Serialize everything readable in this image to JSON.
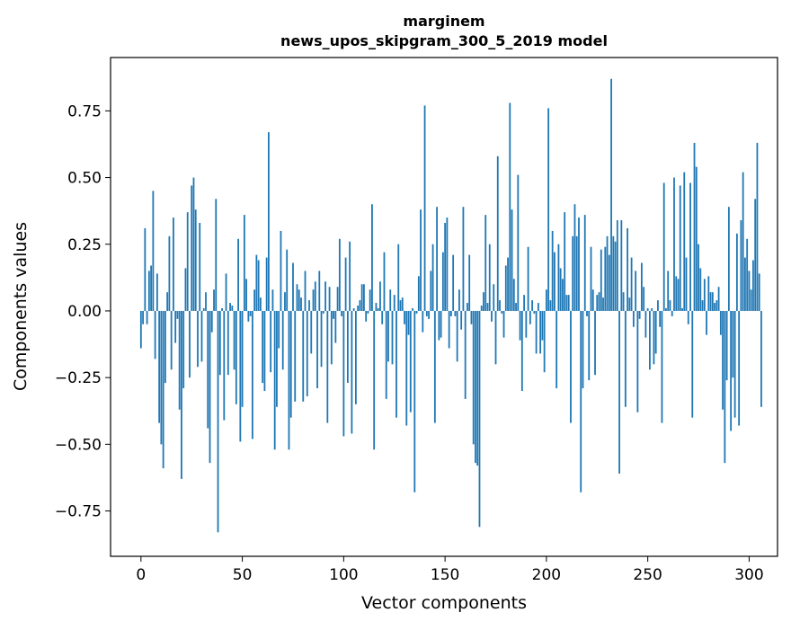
{
  "chart_data": {
    "type": "bar",
    "title": "marginem",
    "subtitle": "news_upos_skipgram_300_5_2019 model",
    "xlabel": "Vector components",
    "ylabel": "Components values",
    "xlim": [
      -15,
      314
    ],
    "ylim": [
      -0.92,
      0.95
    ],
    "xticks": [
      0,
      50,
      100,
      150,
      200,
      250,
      300
    ],
    "xtick_labels": [
      "0",
      "50",
      "100",
      "150",
      "200",
      "250",
      "300"
    ],
    "yticks": [
      -0.75,
      -0.5,
      -0.25,
      0.0,
      0.25,
      0.5,
      0.75
    ],
    "ytick_labels": [
      "−0.75",
      "−0.50",
      "−0.25",
      "0.00",
      "0.25",
      "0.50",
      "0.75"
    ],
    "grid": false,
    "bar_color": "#1f77b4",
    "values": [
      -0.14,
      -0.05,
      0.31,
      -0.05,
      0.15,
      0.17,
      0.45,
      -0.18,
      0.14,
      -0.42,
      -0.5,
      -0.59,
      -0.27,
      0.07,
      0.28,
      -0.22,
      0.35,
      -0.12,
      -0.03,
      -0.37,
      -0.63,
      -0.29,
      0.16,
      0.37,
      -0.25,
      0.47,
      0.5,
      0.38,
      -0.21,
      0.33,
      -0.19,
      0.01,
      0.07,
      -0.44,
      -0.57,
      -0.08,
      0.08,
      0.42,
      -0.83,
      -0.24,
      0.01,
      -0.41,
      0.14,
      -0.24,
      0.03,
      0.02,
      -0.22,
      -0.35,
      0.27,
      -0.49,
      -0.36,
      0.36,
      0.12,
      -0.04,
      -0.02,
      -0.48,
      0.08,
      0.21,
      0.19,
      0.05,
      -0.27,
      -0.3,
      0.2,
      0.67,
      -0.23,
      0.08,
      -0.52,
      -0.36,
      -0.14,
      0.3,
      -0.22,
      0.07,
      0.23,
      -0.52,
      -0.4,
      0.18,
      -0.34,
      0.1,
      0.08,
      0.05,
      -0.34,
      0.15,
      -0.32,
      0.04,
      -0.16,
      0.08,
      0.11,
      -0.29,
      0.15,
      -0.21,
      -0.01,
      0.11,
      -0.42,
      0.09,
      -0.2,
      -0.03,
      -0.12,
      0.09,
      0.27,
      -0.02,
      -0.47,
      0.2,
      -0.27,
      0.26,
      -0.46,
      0.01,
      -0.35,
      0.02,
      0.04,
      0.1,
      0.1,
      -0.04,
      -0.01,
      0.08,
      0.4,
      -0.52,
      0.03,
      0.01,
      0.11,
      -0.05,
      0.22,
      -0.33,
      -0.19,
      0.08,
      -0.2,
      0.06,
      -0.4,
      0.25,
      0.04,
      0.05,
      -0.05,
      -0.43,
      -0.09,
      -0.38,
      0.01,
      -0.68,
      -0.01,
      0.13,
      0.38,
      -0.08,
      0.77,
      -0.02,
      -0.03,
      0.15,
      0.25,
      -0.42,
      0.39,
      -0.11,
      -0.1,
      0.22,
      0.33,
      0.35,
      -0.14,
      -0.02,
      0.21,
      -0.02,
      -0.19,
      0.08,
      -0.07,
      0.39,
      -0.33,
      0.03,
      0.21,
      -0.05,
      -0.5,
      -0.57,
      -0.58,
      -0.81,
      0.02,
      0.07,
      0.36,
      0.03,
      0.25,
      -0.04,
      0.1,
      -0.2,
      0.58,
      0.04,
      -0.01,
      -0.1,
      0.17,
      0.2,
      0.78,
      0.38,
      0.12,
      0.03,
      0.51,
      -0.11,
      -0.3,
      0.06,
      -0.1,
      0.24,
      -0.05,
      0.04,
      -0.01,
      -0.16,
      0.03,
      -0.16,
      -0.11,
      -0.23,
      0.08,
      0.76,
      0.04,
      0.3,
      0.22,
      -0.29,
      0.25,
      0.16,
      0.12,
      0.37,
      0.06,
      0.06,
      -0.42,
      0.28,
      0.4,
      0.28,
      0.35,
      -0.68,
      -0.29,
      0.36,
      -0.02,
      -0.26,
      0.24,
      0.08,
      -0.24,
      0.06,
      0.07,
      0.23,
      0.05,
      0.24,
      0.28,
      0.21,
      0.87,
      0.28,
      0.26,
      0.34,
      -0.61,
      0.34,
      0.07,
      -0.36,
      0.31,
      0.05,
      0.2,
      -0.06,
      0.15,
      -0.38,
      -0.03,
      0.18,
      0.09,
      -0.1,
      0.01,
      -0.22,
      0.01,
      -0.2,
      -0.16,
      0.04,
      -0.06,
      -0.42,
      0.48,
      0.01,
      0.15,
      0.04,
      -0.02,
      0.5,
      0.13,
      0.12,
      0.47,
      0.01,
      0.52,
      0.2,
      -0.05,
      0.48,
      -0.4,
      0.63,
      0.54,
      0.25,
      0.16,
      0.04,
      0.12,
      -0.09,
      0.13,
      0.07,
      0.07,
      0.03,
      0.04,
      0.09,
      -0.09,
      -0.37,
      -0.57,
      -0.26,
      0.39,
      -0.45,
      -0.25,
      -0.4,
      0.29,
      -0.43,
      0.34,
      0.52,
      0.2,
      0.27,
      0.15,
      0.08,
      0.19,
      0.42,
      0.63,
      0.14,
      -0.36
    ]
  }
}
